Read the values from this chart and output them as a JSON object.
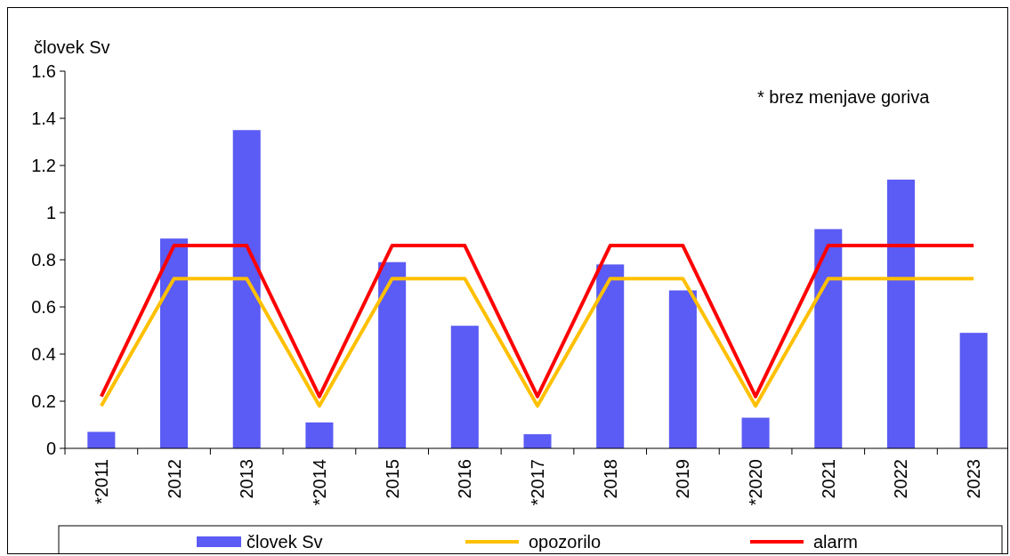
{
  "chart_data": {
    "type": "bar",
    "ylabel": "človek Sv",
    "annotations": [
      "* brez menjave goriva"
    ],
    "categories": [
      "*2011",
      "2012",
      "2013",
      "*2014",
      "2015",
      "2016",
      "*2017",
      "2018",
      "2019",
      "*2020",
      "2021",
      "2022",
      "2023"
    ],
    "series": [
      {
        "name": "človek Sv",
        "color": "#5b5bf5",
        "values": [
          0.07,
          0.89,
          1.35,
          0.11,
          0.79,
          0.52,
          0.06,
          0.78,
          0.67,
          0.13,
          0.93,
          1.14,
          0.49
        ]
      },
      {
        "name": "opozorilo",
        "type": "line",
        "color": "#ffc000",
        "values": [
          0.18,
          0.72,
          0.72,
          0.18,
          0.72,
          0.72,
          0.18,
          0.72,
          0.72,
          0.18,
          0.72,
          0.72,
          0.72
        ]
      },
      {
        "name": "alarm",
        "type": "line",
        "color": "#ff0000",
        "values": [
          0.22,
          0.86,
          0.86,
          0.22,
          0.86,
          0.86,
          0.22,
          0.86,
          0.86,
          0.22,
          0.86,
          0.86,
          0.86
        ]
      }
    ],
    "ylim": [
      0,
      1.6
    ],
    "yticks": [
      0,
      0.2,
      0.4,
      0.6,
      0.8,
      1,
      1.2,
      1.4,
      1.6
    ],
    "grid": false,
    "legend": "bottom"
  }
}
